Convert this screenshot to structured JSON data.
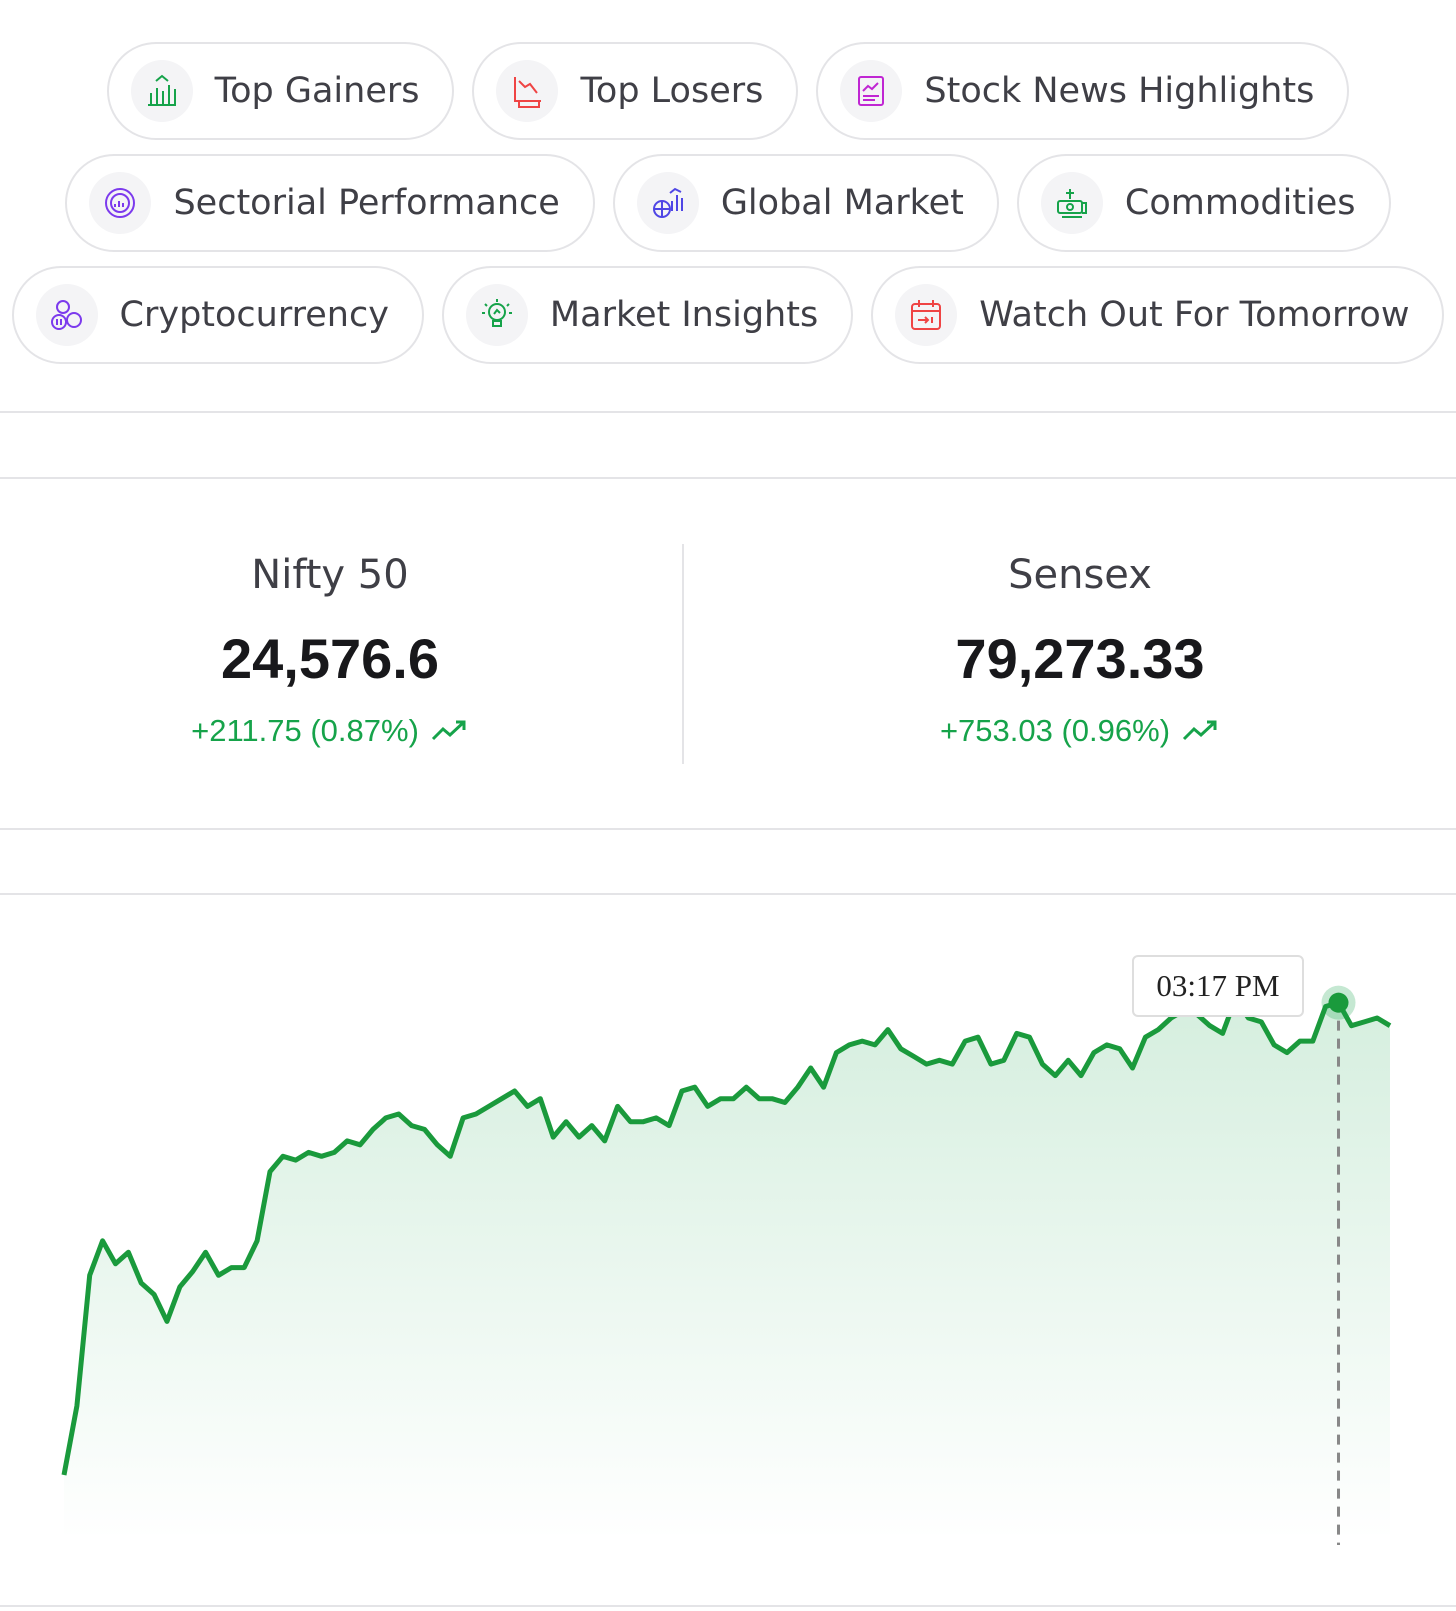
{
  "chips": {
    "row1": [
      {
        "label": "Top Gainers",
        "icon": "bar-chart-up-icon"
      },
      {
        "label": "Top Losers",
        "icon": "loss-chart-icon"
      },
      {
        "label": "Stock News Highlights",
        "icon": "news-chart-icon"
      }
    ],
    "row2": [
      {
        "label": "Sectorial Performance",
        "icon": "sector-pie-icon"
      },
      {
        "label": "Global Market",
        "icon": "globe-chart-icon"
      },
      {
        "label": "Commodities",
        "icon": "money-cart-icon"
      }
    ],
    "row3": [
      {
        "label": "Cryptocurrency",
        "icon": "crypto-coins-icon"
      },
      {
        "label": "Market Insights",
        "icon": "bulb-insight-icon"
      },
      {
        "label": "Watch Out For Tomorrow",
        "icon": "calendar-icon"
      }
    ]
  },
  "indices": [
    {
      "name": "Nifty 50",
      "value": "24,576.6",
      "change": "+211.75 (0.87%)"
    },
    {
      "name": "Sensex",
      "value": "79,273.33",
      "change": "+753.03 (0.96%)"
    }
  ],
  "colors": {
    "up": "#16a34a",
    "line": "#1a9a3c",
    "border": "#e4e4e7"
  },
  "chart_data": {
    "type": "line",
    "series": [
      {
        "values": [
          0,
          18,
          52,
          61,
          55,
          58,
          50,
          47,
          40,
          49,
          53,
          58,
          52,
          54,
          54,
          61,
          79,
          83,
          82,
          84,
          83,
          84,
          87,
          86,
          90,
          93,
          94,
          91,
          90,
          86,
          83,
          93,
          94,
          96,
          98,
          100,
          96,
          98,
          88,
          92,
          88,
          91,
          87,
          96,
          92,
          92,
          93,
          91,
          100,
          101,
          96,
          98,
          98,
          101,
          98,
          98,
          97,
          101,
          106,
          101,
          110,
          112,
          113,
          112,
          116,
          111,
          109,
          107,
          108,
          107,
          113,
          114,
          107,
          108,
          115,
          114,
          107,
          104,
          108,
          104,
          110,
          112,
          111,
          106,
          114,
          116,
          119,
          121,
          120,
          117,
          115,
          124,
          119,
          118,
          112,
          110,
          113,
          113,
          122,
          123,
          117,
          118,
          119,
          117
        ]
      }
    ],
    "tooltip": {
      "time": "03:17 PM"
    }
  }
}
